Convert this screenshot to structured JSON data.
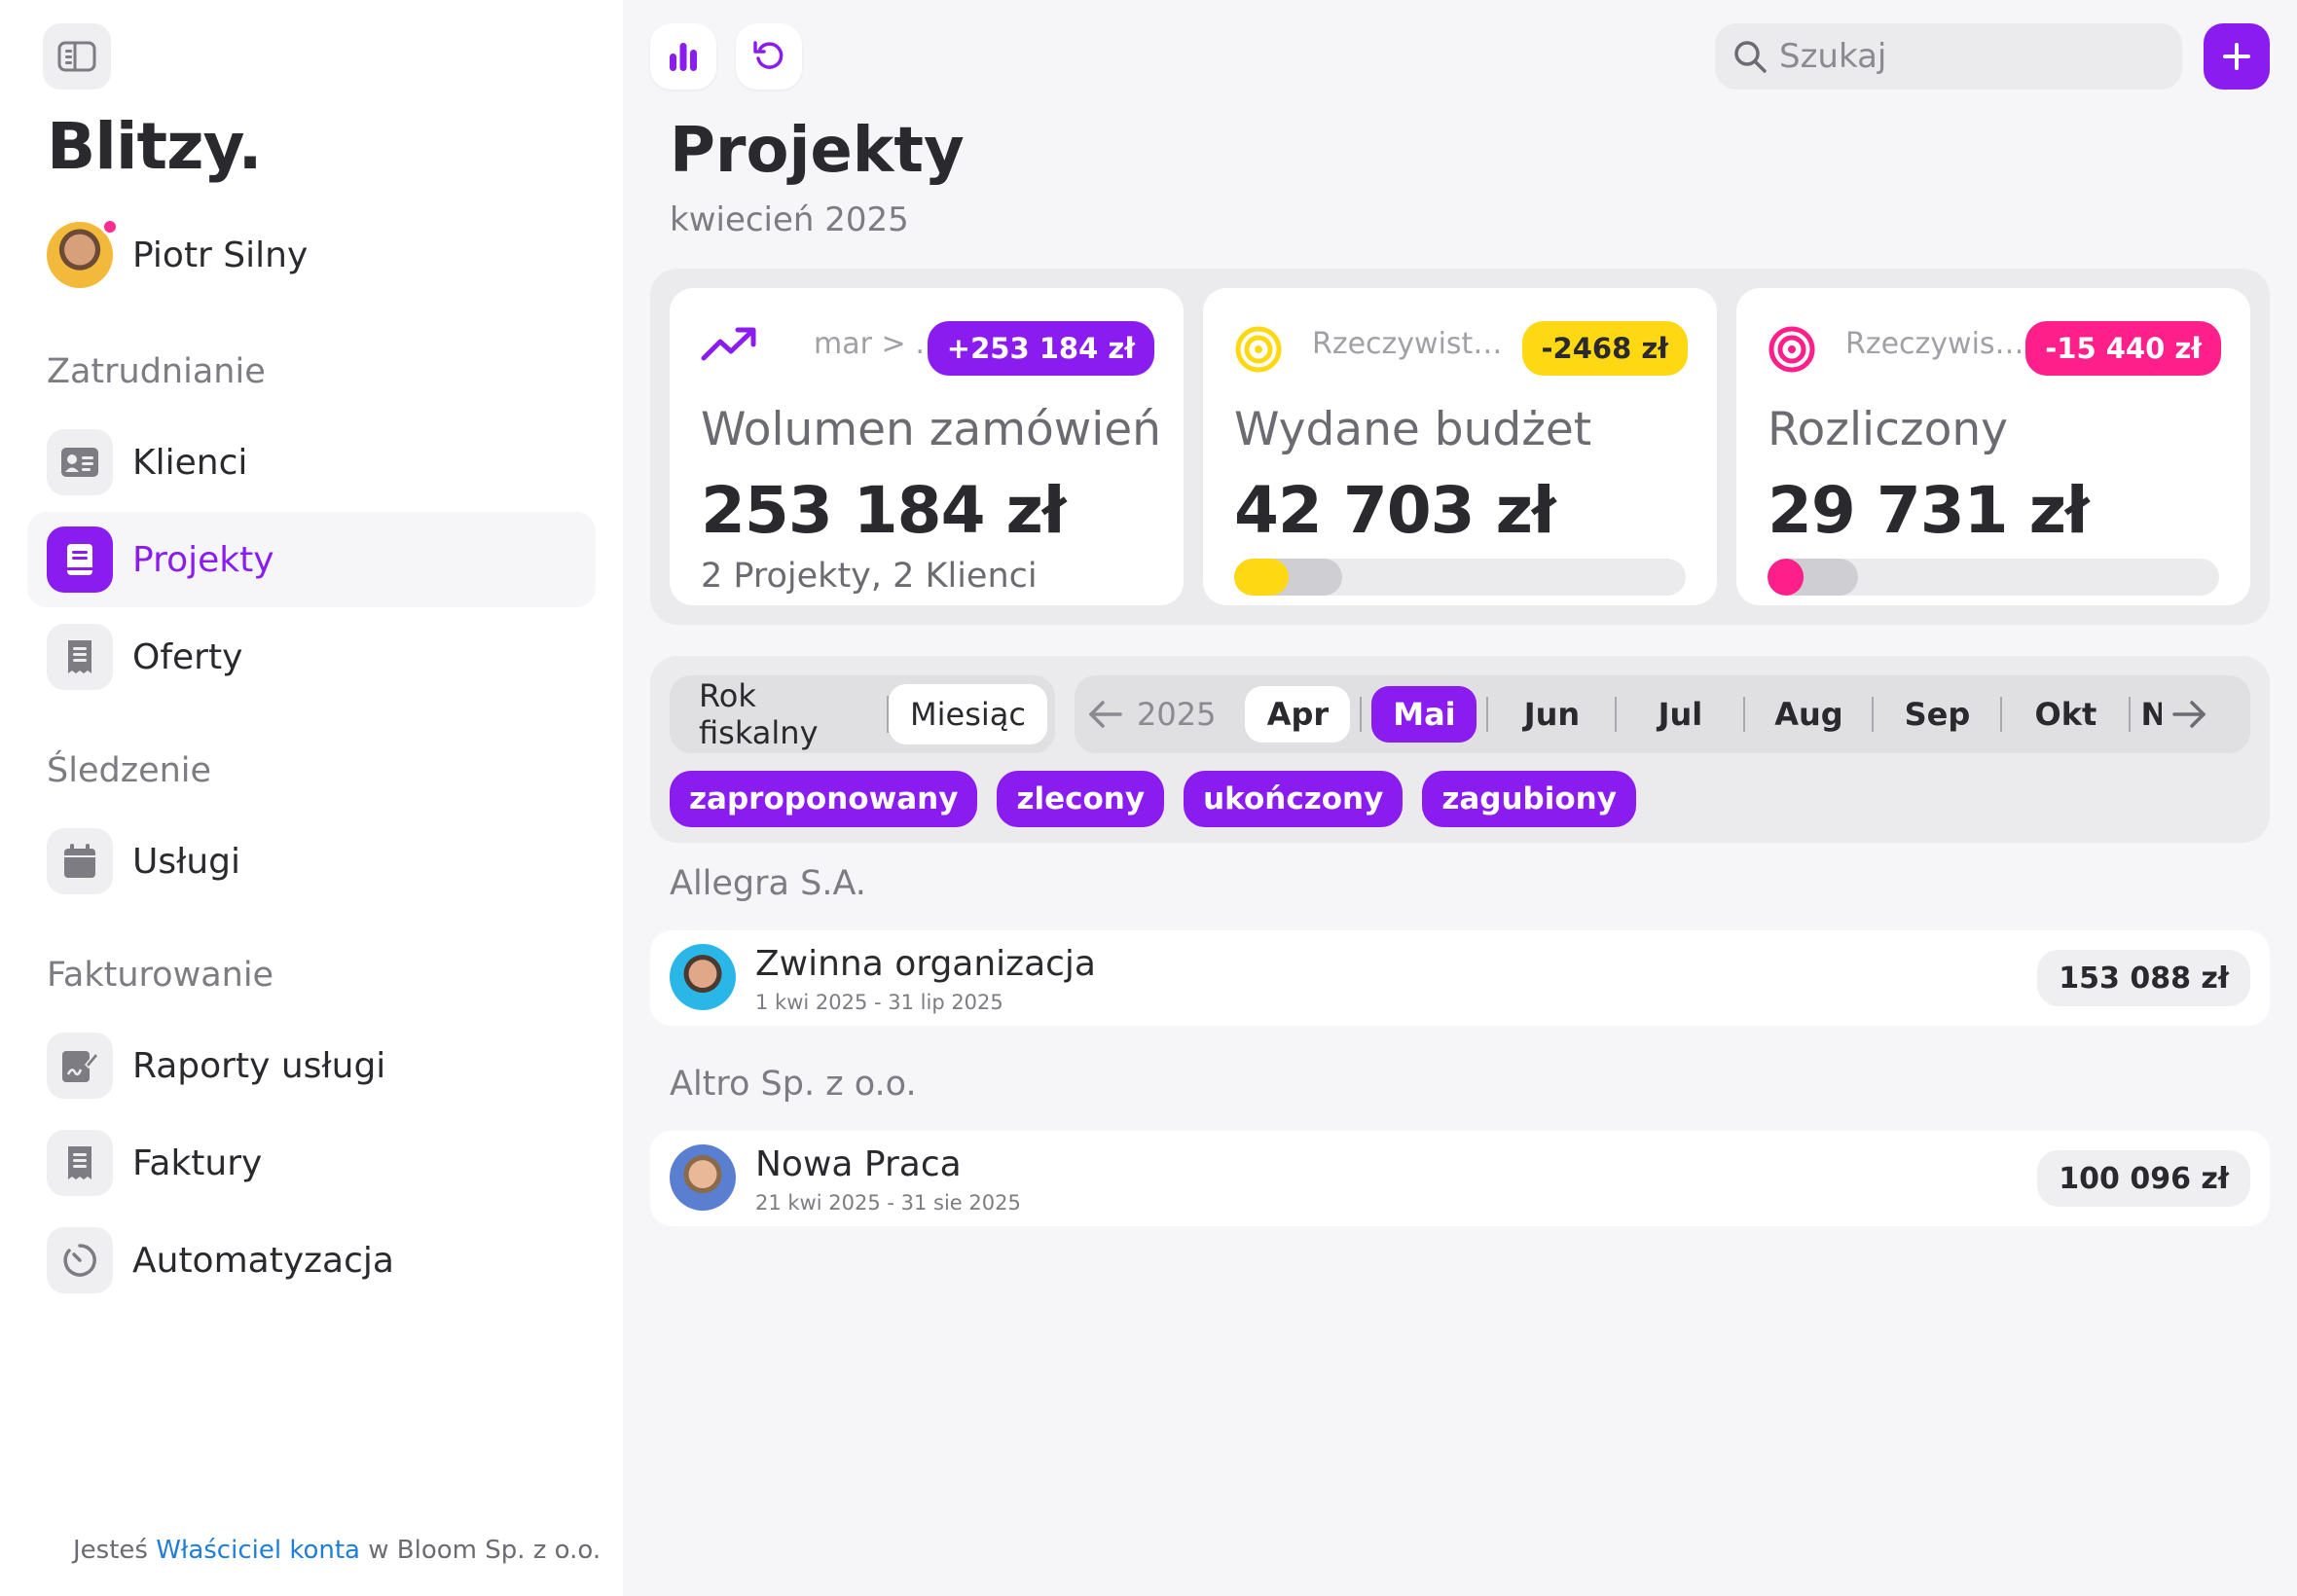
{
  "colors": {
    "accent": "#8a1cf0",
    "yellow": "#ffd814",
    "pink": "#ff1f8a",
    "link": "#1f7fd8"
  },
  "sidebar": {
    "toggle_icon": "sidebar-toggle-icon",
    "brand": "Blitzy.",
    "user": {
      "name": "Piotr Silny",
      "has_notification": true
    },
    "sections": [
      {
        "title": "Zatrudnianie",
        "items": [
          {
            "label": "Klienci",
            "icon": "contact-card-icon",
            "active": false
          },
          {
            "label": "Projekty",
            "icon": "book-icon",
            "active": true
          },
          {
            "label": "Oferty",
            "icon": "receipt-icon",
            "active": false
          }
        ]
      },
      {
        "title": "Śledzenie",
        "items": [
          {
            "label": "Usługi",
            "icon": "calendar-icon",
            "active": false
          }
        ]
      },
      {
        "title": "Fakturowanie",
        "items": [
          {
            "label": "Raporty usługi",
            "icon": "signature-icon",
            "active": false
          },
          {
            "label": "Faktury",
            "icon": "invoice-icon",
            "active": false
          },
          {
            "label": "Automatyzacja",
            "icon": "timer-icon",
            "active": false
          }
        ]
      }
    ],
    "footer": {
      "prefix": "Jesteś ",
      "role": "Właściciel konta",
      "suffix": " w Bloom Sp. z o.o."
    }
  },
  "topbar": {
    "chart_button_icon": "bar-chart-icon",
    "refresh_button_icon": "refresh-icon",
    "search_placeholder": "Szukaj",
    "search_value": "",
    "add_button_icon": "plus-icon"
  },
  "header": {
    "title": "Projekty",
    "subtitle": "kwiecień 2025"
  },
  "stats": [
    {
      "icon": "trending-up-icon",
      "meta": "mar > kwi",
      "badge": "+253 184 zł",
      "badge_color": "#8a1cf0",
      "badge_text_color": "#ffffff",
      "label": "Wolumen zamówień",
      "value": "253 184 zł",
      "footer": "2 Projekty, 2 Klienci"
    },
    {
      "icon": "target-yellow-icon",
      "meta": "Rzeczywisty/...",
      "badge": "-2468 zł",
      "badge_color": "#ffd814",
      "badge_text_color": "#2a2a2e",
      "label": "Wydane budżet",
      "value": "42 703 zł",
      "progress_fill": 0.12,
      "progress_color": "#ffd814",
      "progress_tail": 0.12
    },
    {
      "icon": "target-pink-icon",
      "meta": "Rzeczywist...",
      "badge": "-15 440 zł",
      "badge_color": "#ff1f8a",
      "badge_text_color": "#ffffff",
      "label": "Rozliczony",
      "value": "29 731 zł",
      "progress_fill": 0.08,
      "progress_color": "#ff1f8a",
      "progress_tail": 0.12
    }
  ],
  "filters": {
    "period_modes": [
      {
        "label": "Rok fiskalny",
        "selected": false
      },
      {
        "label": "Miesiąc",
        "selected": true
      }
    ],
    "year": "2025",
    "months": [
      {
        "label": "Apr",
        "state": "white"
      },
      {
        "label": "Mai",
        "state": "purple"
      },
      {
        "label": "Jun",
        "state": "none"
      },
      {
        "label": "Jul",
        "state": "none"
      },
      {
        "label": "Aug",
        "state": "none"
      },
      {
        "label": "Sep",
        "state": "none"
      },
      {
        "label": "Okt",
        "state": "none"
      },
      {
        "label": "N",
        "state": "none"
      }
    ],
    "statuses": [
      "zaproponowany",
      "zlecony",
      "ukończony",
      "zagubiony"
    ]
  },
  "groups": [
    {
      "client": "Allegra S.A.",
      "projects": [
        {
          "name": "Zwinna organizacja",
          "dates": "1 kwi 2025 - 31 lip 2025",
          "amount": "153 088 zł"
        }
      ]
    },
    {
      "client": "Altro Sp. z o.o.",
      "projects": [
        {
          "name": "Nowa Praca",
          "dates": "21 kwi 2025 - 31 sie 2025",
          "amount": "100 096 zł"
        }
      ]
    }
  ]
}
